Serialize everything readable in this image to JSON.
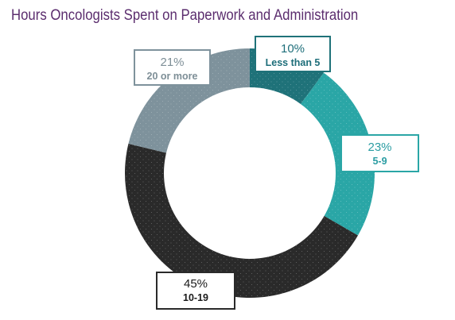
{
  "chart_data": {
    "type": "pie",
    "title": "Hours Oncologists Spent on Paperwork and Administration",
    "slices": [
      {
        "category": "Less than 5",
        "value": 10,
        "label": "10%",
        "color": "#1f7279",
        "label_color": "#1e6e7a"
      },
      {
        "category": "5-9",
        "value": 23,
        "label": "23%",
        "color": "#2aa6a6",
        "label_color": "#2b9da3"
      },
      {
        "category": "10-19",
        "value": 45,
        "label": "45%",
        "color": "#2a2a2a",
        "label_color": "#1a1a1a"
      },
      {
        "category": "20 or more",
        "value": 21,
        "label": "21%",
        "color": "#7e929c",
        "label_color": "#7e8f97"
      }
    ]
  }
}
